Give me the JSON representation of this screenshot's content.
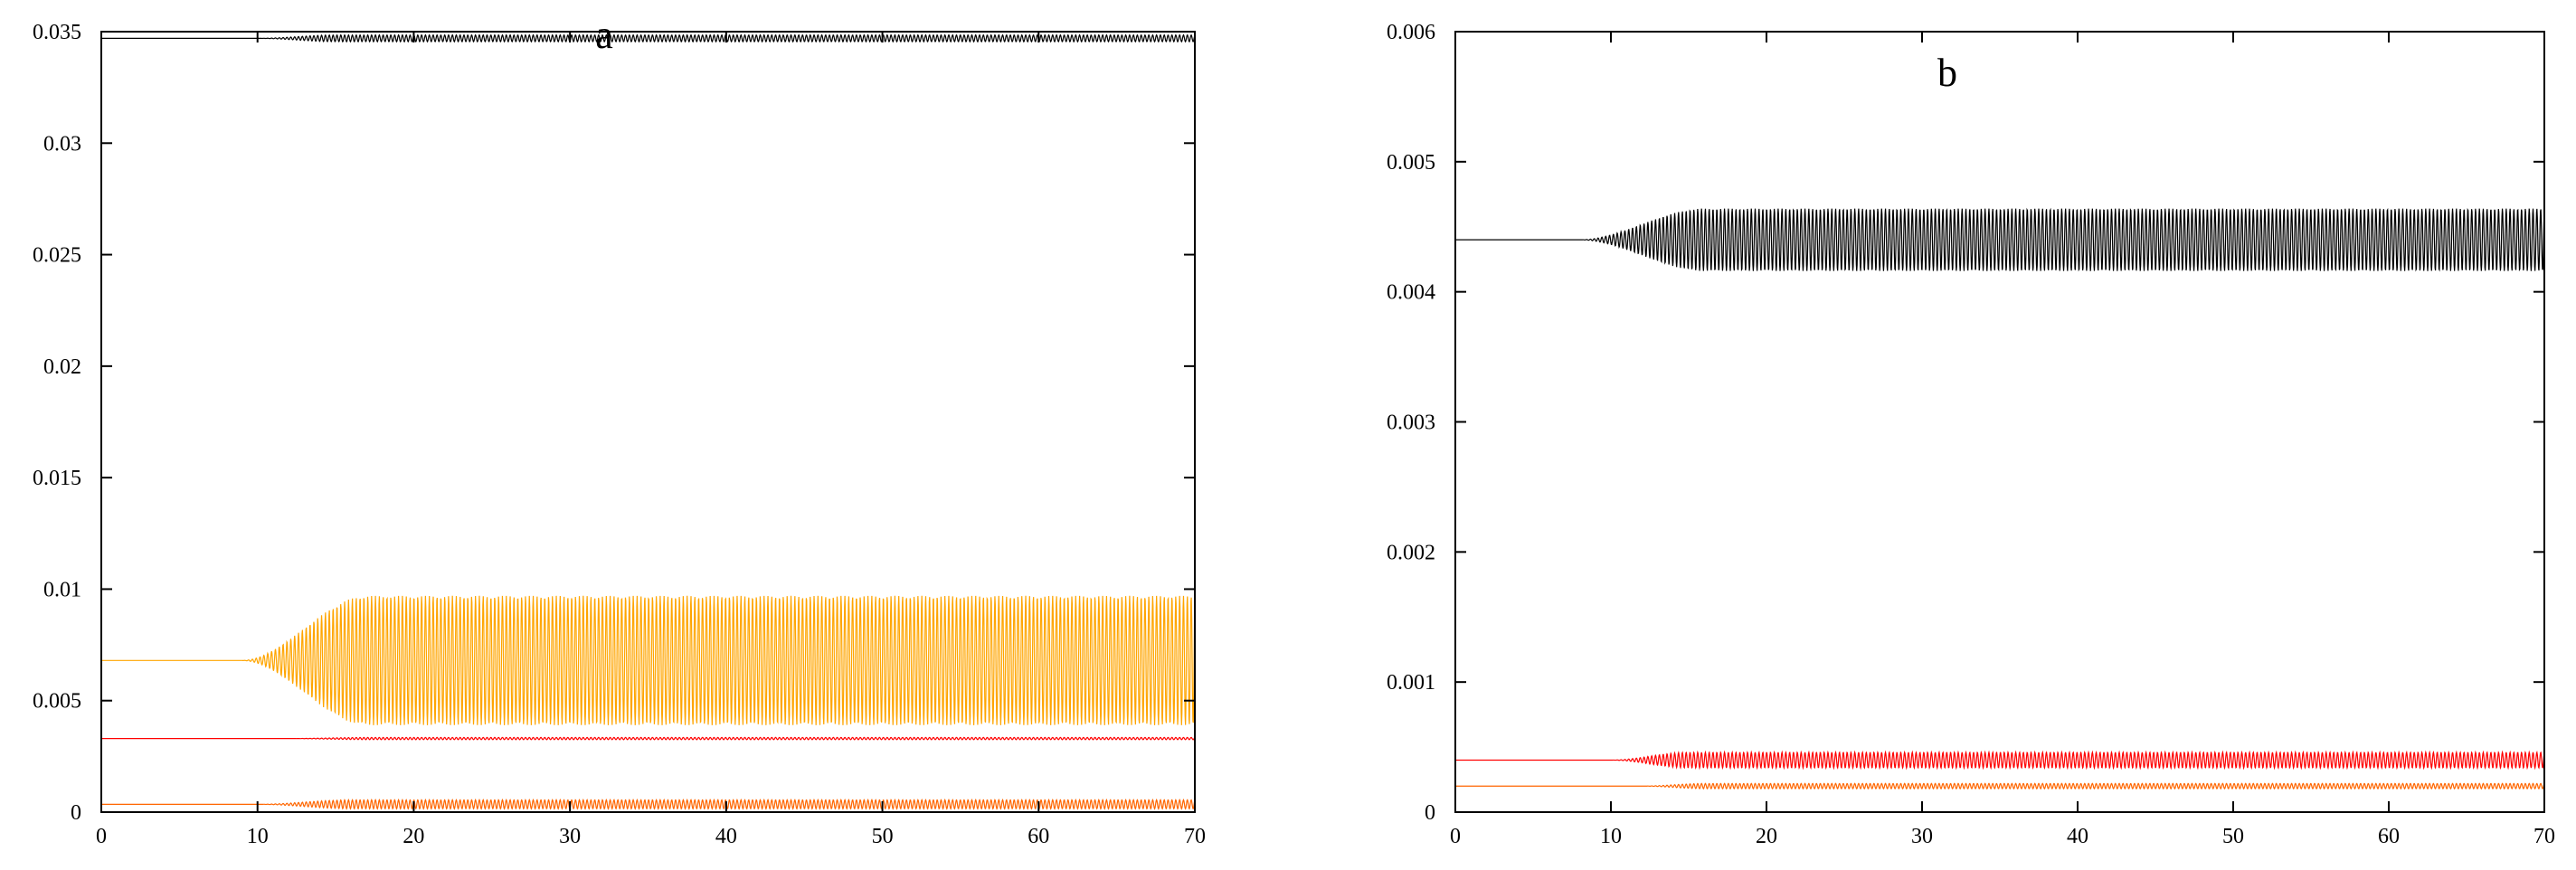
{
  "chart_data": [
    {
      "type": "line",
      "panel_label": "a",
      "title": "",
      "xlabel": "",
      "ylabel": "",
      "xlim": [
        0,
        70
      ],
      "ylim": [
        0,
        0.035
      ],
      "x_ticks": [
        0,
        10,
        20,
        30,
        40,
        50,
        60,
        70
      ],
      "x_tick_labels": [
        "0",
        "10",
        "20",
        "30",
        "40",
        "50",
        "60",
        "70"
      ],
      "y_ticks": [
        0,
        0.005,
        0.01,
        0.015,
        0.02,
        0.025,
        0.03,
        0.035
      ],
      "y_tick_labels": [
        "0",
        "0.005",
        "0.01",
        "0.015",
        "0.02",
        "0.025",
        "0.03",
        "0.035"
      ],
      "grid": false,
      "legend": "none",
      "series": [
        {
          "color": "#000000",
          "baseline": 0.0347,
          "amplitude": 0.00015,
          "onset": 10,
          "saturation": 15,
          "period": 0.5
        },
        {
          "color": "#ffa500",
          "baseline": 0.0068,
          "amplitude": 0.0029,
          "onset": 9,
          "saturation": 17,
          "period": 0.5
        },
        {
          "color": "#ff0000",
          "baseline": 0.0033,
          "amplitude": 5e-05,
          "onset": 12,
          "saturation": 17,
          "period": 0.5
        },
        {
          "color": "#ff6600",
          "baseline": 0.00035,
          "amplitude": 0.0002,
          "onset": 10,
          "saturation": 16,
          "period": 0.5
        }
      ]
    },
    {
      "type": "line",
      "panel_label": "b",
      "title": "",
      "xlabel": "",
      "ylabel": "",
      "xlim": [
        0,
        70
      ],
      "ylim": [
        0,
        0.006
      ],
      "x_ticks": [
        0,
        10,
        20,
        30,
        40,
        50,
        60,
        70
      ],
      "x_tick_labels": [
        "0",
        "10",
        "20",
        "30",
        "40",
        "50",
        "60",
        "70"
      ],
      "y_ticks": [
        0,
        0.001,
        0.002,
        0.003,
        0.004,
        0.005,
        0.006
      ],
      "y_tick_labels": [
        "0",
        "0.001",
        "0.002",
        "0.003",
        "0.004",
        "0.005",
        "0.006"
      ],
      "grid": false,
      "legend": "none",
      "series": [
        {
          "color": "#000000",
          "baseline": 0.0044,
          "amplitude": 0.00024,
          "onset": 8,
          "saturation": 16,
          "period": 0.5
        },
        {
          "color": "#ff0000",
          "baseline": 0.0004,
          "amplitude": 6e-05,
          "onset": 10,
          "saturation": 15,
          "period": 0.5
        },
        {
          "color": "#ff6600",
          "baseline": 0.0002,
          "amplitude": 2e-05,
          "onset": 12,
          "saturation": 16,
          "period": 0.5
        }
      ]
    }
  ]
}
